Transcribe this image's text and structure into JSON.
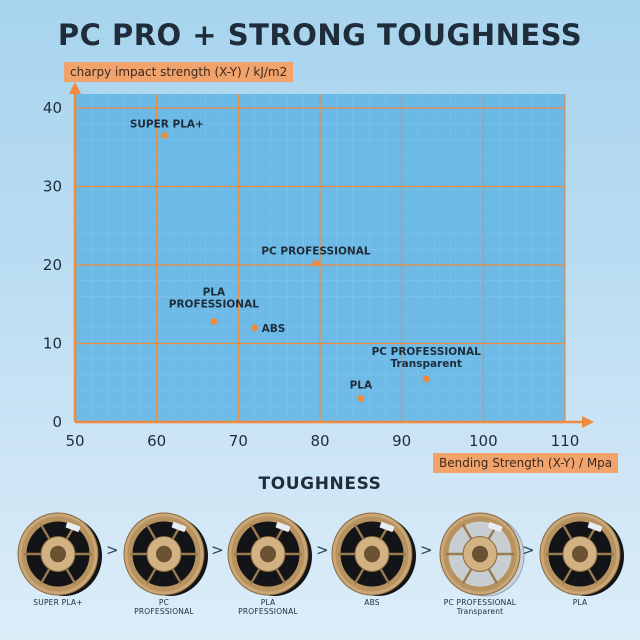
{
  "title": "PC PRO + STRONG TOUGHNESS",
  "chart_data": {
    "type": "scatter",
    "ylabel": "charpy impact strength (X-Y) / kJ/m2",
    "xlabel": "Bending Strength (X-Y) / Mpa",
    "xlim": [
      50,
      110
    ],
    "ylim": [
      0,
      40
    ],
    "x_ticks": [
      "50",
      "60",
      "70",
      "80",
      "90",
      "100",
      "110"
    ],
    "y_ticks": [
      "0",
      "10",
      "20",
      "30",
      "40"
    ],
    "grid": true,
    "points": [
      {
        "label": "SUPER PLA+",
        "x": 61,
        "y": 36.5
      },
      {
        "label": "PC PROFESSIONAL",
        "x": 79.5,
        "y": 20.2
      },
      {
        "label": "PLA\nPROFESSIONAL",
        "x": 67,
        "y": 12.8
      },
      {
        "label": "ABS",
        "x": 72,
        "y": 12
      },
      {
        "label": "PC PROFESSIONAL\nTransparent",
        "x": 93,
        "y": 5.5
      },
      {
        "label": "PLA",
        "x": 85,
        "y": 3
      }
    ],
    "point_color": "#f08a3c",
    "grid_color": "#f08a3c"
  },
  "toughness": {
    "title": "TOUGHNESS",
    "separator": ">",
    "items": [
      {
        "label": "SUPER PLA+",
        "filament_color": "#121417"
      },
      {
        "label": "PC\nPROFESSIONAL",
        "filament_color": "#121417"
      },
      {
        "label": "PLA\nPROFESSIONAL",
        "filament_color": "#121417"
      },
      {
        "label": "ABS",
        "filament_color": "#121417"
      },
      {
        "label": "PC PROFESSIONAL\nTransparent",
        "filament_color": "#c9d3dc"
      },
      {
        "label": "PLA",
        "filament_color": "#121417"
      }
    ]
  }
}
